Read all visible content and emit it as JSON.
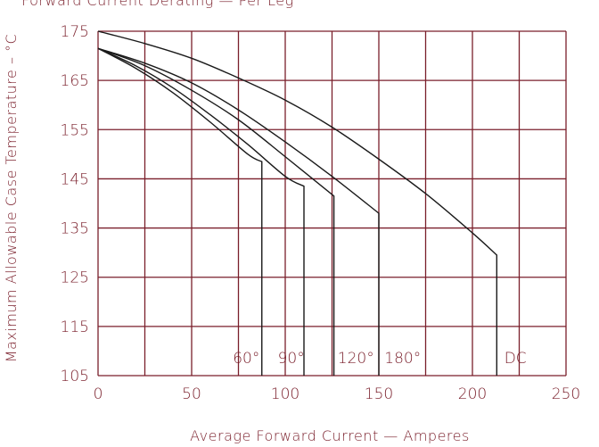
{
  "chart_data": {
    "type": "line",
    "title": "Forward Current Derating — Per Leg",
    "xlabel": "Average Forward Current — Amperes",
    "ylabel": "Maximum Allowable Case Temperature – °C",
    "xlim": [
      0,
      250
    ],
    "ylim": [
      105,
      175
    ],
    "x_ticks": [
      "0",
      "50",
      "100",
      "150",
      "200",
      "250"
    ],
    "y_ticks": [
      "105",
      "115",
      "125",
      "135",
      "145",
      "155",
      "165",
      "175"
    ],
    "grid": true,
    "series": [
      {
        "name": "60°",
        "points": [
          [
            0,
            171.5
          ],
          [
            20,
            167.5
          ],
          [
            40,
            162.5
          ],
          [
            60,
            156.5
          ],
          [
            80,
            150
          ],
          [
            87.5,
            148.5
          ],
          [
            87.5,
            105
          ]
        ]
      },
      {
        "name": "90°",
        "points": [
          [
            0,
            171.5
          ],
          [
            20,
            168
          ],
          [
            40,
            163.5
          ],
          [
            60,
            158
          ],
          [
            80,
            152
          ],
          [
            100,
            145.5
          ],
          [
            110,
            143.5
          ],
          [
            110,
            105
          ]
        ]
      },
      {
        "name": "120°",
        "points": [
          [
            0,
            171.5
          ],
          [
            25,
            168
          ],
          [
            50,
            163
          ],
          [
            75,
            157
          ],
          [
            100,
            149.5
          ],
          [
            126,
            141.5
          ],
          [
            126,
            105
          ]
        ]
      },
      {
        "name": "180°",
        "points": [
          [
            0,
            171.5
          ],
          [
            25,
            168.5
          ],
          [
            50,
            164.5
          ],
          [
            75,
            159
          ],
          [
            100,
            152.5
          ],
          [
            125,
            145.5
          ],
          [
            150,
            138
          ],
          [
            150,
            105
          ]
        ]
      },
      {
        "name": "DC",
        "points": [
          [
            0,
            175
          ],
          [
            25,
            172.5
          ],
          [
            50,
            169.5
          ],
          [
            75,
            165.5
          ],
          [
            100,
            161
          ],
          [
            125,
            155.5
          ],
          [
            150,
            149
          ],
          [
            175,
            142
          ],
          [
            200,
            134
          ],
          [
            213,
            129.5
          ],
          [
            213,
            105
          ]
        ]
      }
    ],
    "series_labels": [
      {
        "text": "60°",
        "x": 72,
        "y": 107.5
      },
      {
        "text": "90°",
        "x": 96,
        "y": 107.5
      },
      {
        "text": "120°",
        "x": 128,
        "y": 107.5
      },
      {
        "text": "180°",
        "x": 153,
        "y": 107.5
      },
      {
        "text": "DC",
        "x": 217,
        "y": 107.5
      }
    ],
    "colors": {
      "axis": "#7a1f2b",
      "lines": "#1a1a1a"
    }
  }
}
